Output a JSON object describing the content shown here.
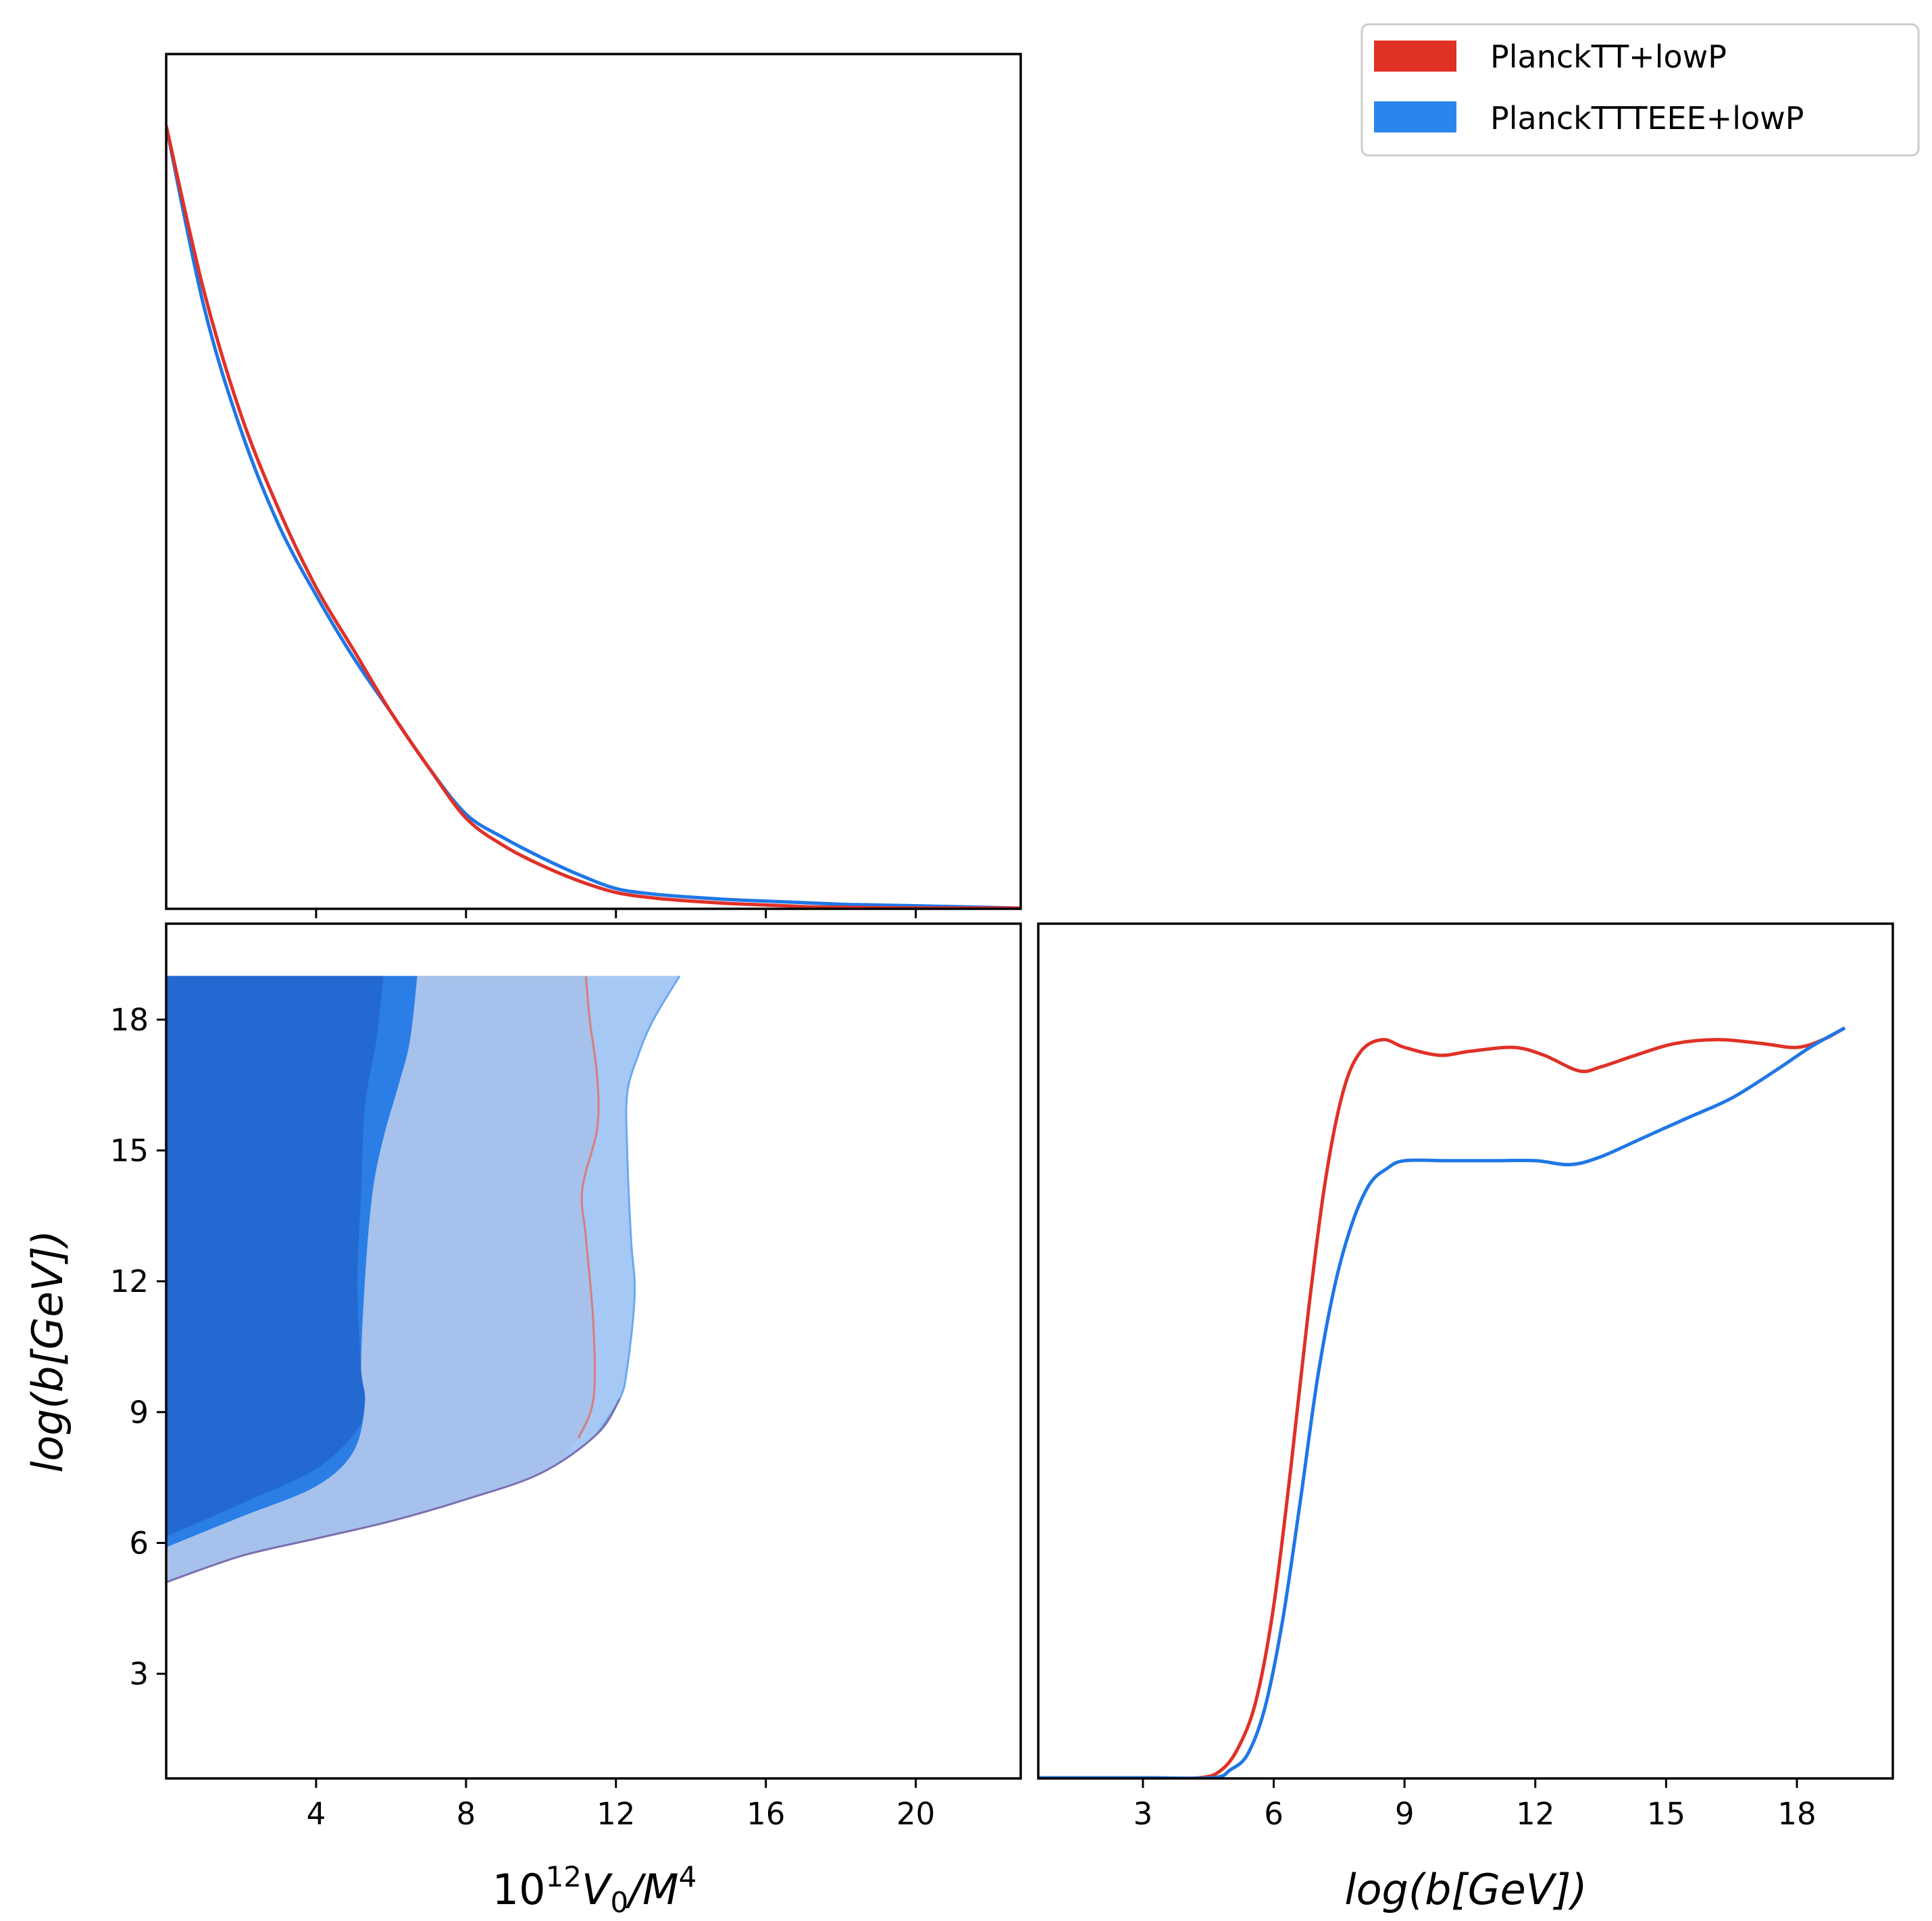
{
  "colors": {
    "red": "#e03127",
    "blue": "#1f77e6",
    "blue_dark_fill": "#2369d1",
    "blue_mid_fill": "#2a7ee6",
    "blue_light_fill": "#a6c1eb",
    "blue_lighter_fill": "#a5c8f5",
    "red_contour": "#d87c7c",
    "blue_contour": "#6da8ee",
    "contour_mix": "#7a6fb0"
  },
  "legend": {
    "entries": [
      {
        "label": "PlanckTT+lowP",
        "color": "#e03127"
      },
      {
        "label": "PlanckTTTEEE+lowP",
        "color": "#2a86ec"
      }
    ],
    "placement": "top-right"
  },
  "labels": {
    "x_left": "10",
    "x_left_sup": "12",
    "x_left_v": "V",
    "x_left_sub": "0",
    "x_left_rest": "/M",
    "x_left_sup2": "4",
    "y_left": "log(b[GeV])",
    "x_right": "log(b[GeV])"
  },
  "chart_data": [
    {
      "type": "line",
      "panel": "1D marginal of 10^12 V0/M^4",
      "xlim": [
        0,
        22.8
      ],
      "ylim": [
        0,
        1.0
      ],
      "yticks_visible": false,
      "xticks": [
        4,
        8,
        12,
        16,
        20
      ],
      "series": [
        {
          "name": "PlanckTT+lowP",
          "x": [
            0,
            1,
            2,
            3,
            4,
            5,
            6,
            7,
            8,
            9,
            10,
            11,
            12,
            13,
            14,
            15,
            16,
            17,
            18,
            19,
            20,
            22.8
          ],
          "y": [
            1.0,
            0.79,
            0.63,
            0.51,
            0.41,
            0.33,
            0.25,
            0.18,
            0.115,
            0.08,
            0.055,
            0.035,
            0.02,
            0.013,
            0.009,
            0.006,
            0.004,
            0.002,
            0.001,
            0.0005,
            0.0002,
            0.0
          ]
        },
        {
          "name": "PlanckTTTEEE+lowP",
          "x": [
            0,
            1,
            2,
            3,
            4,
            5,
            6,
            7,
            8,
            9,
            10,
            11,
            12,
            13,
            14,
            15,
            16,
            17,
            18,
            19,
            20,
            22.8
          ],
          "y": [
            1.0,
            0.77,
            0.61,
            0.49,
            0.4,
            0.32,
            0.25,
            0.18,
            0.12,
            0.09,
            0.065,
            0.043,
            0.025,
            0.018,
            0.014,
            0.011,
            0.009,
            0.007,
            0.005,
            0.004,
            0.003,
            0.0
          ]
        }
      ]
    },
    {
      "type": "contour",
      "panel": "2D posterior log(b[GeV]) vs 10^12 V0/M^4",
      "xlim": [
        0,
        22.8
      ],
      "ylim": [
        0.6,
        20.2
      ],
      "xticks": [
        4,
        8,
        12,
        16,
        20
      ],
      "yticks": [
        3,
        6,
        9,
        12,
        15,
        18
      ],
      "contours": [
        {
          "name": "PlanckTTTEEE+lowP 95%",
          "fill": "#a5c8f5",
          "edge": "#6da8ee",
          "points": [
            [
              0,
              5.1
            ],
            [
              2,
              5.7
            ],
            [
              4,
              6.1
            ],
            [
              6,
              6.5
            ],
            [
              8,
              7.0
            ],
            [
              10,
              7.6
            ],
            [
              11.5,
              8.5
            ],
            [
              12.1,
              9.3
            ],
            [
              12.3,
              10
            ],
            [
              12.5,
              11.7
            ],
            [
              12.4,
              13
            ],
            [
              12.3,
              15
            ],
            [
              12.3,
              16.3
            ],
            [
              12.6,
              17.2
            ],
            [
              13,
              18
            ],
            [
              13.7,
              19
            ],
            [
              0,
              19
            ]
          ]
        },
        {
          "name": "PlanckTT+lowP 95%",
          "fill": "#a6c1eb",
          "edge": "#d87c7c",
          "points": [
            [
              0,
              5.1
            ],
            [
              2,
              5.7
            ],
            [
              4,
              6.1
            ],
            [
              6,
              6.5
            ],
            [
              8,
              7.0
            ],
            [
              10,
              7.6
            ],
            [
              11,
              8.4
            ],
            [
              11.4,
              9.3
            ],
            [
              11.4,
              11
            ],
            [
              11.2,
              13
            ],
            [
              11.1,
              14.1
            ],
            [
              11.5,
              15.5
            ],
            [
              11.5,
              16.7
            ],
            [
              11.3,
              18
            ],
            [
              11.2,
              19
            ],
            [
              0,
              19
            ]
          ]
        },
        {
          "name": "PlanckTTTEEE+lowP 68%",
          "fill": "#2a7ee6",
          "edge": "none",
          "points": [
            [
              0,
              5.9
            ],
            [
              2,
              6.6
            ],
            [
              4,
              7.3
            ],
            [
              5,
              8.1
            ],
            [
              5.3,
              9.2
            ],
            [
              5.2,
              10
            ],
            [
              5.3,
              12
            ],
            [
              5.5,
              14
            ],
            [
              5.8,
              15.3
            ],
            [
              6.2,
              16.5
            ],
            [
              6.5,
              17.5
            ],
            [
              6.7,
              19
            ],
            [
              0,
              19
            ]
          ]
        },
        {
          "name": "PlanckTT+lowP 68%",
          "fill": "#2369d1",
          "edge": "none",
          "points": [
            [
              0,
              6.15
            ],
            [
              2,
              6.9
            ],
            [
              4,
              7.7
            ],
            [
              5.1,
              8.6
            ],
            [
              5.3,
              9.3
            ],
            [
              5.2,
              10
            ],
            [
              5.1,
              12
            ],
            [
              5.2,
              14
            ],
            [
              5.3,
              16
            ],
            [
              5.6,
              17.5
            ],
            [
              5.8,
              19
            ],
            [
              0,
              19
            ]
          ]
        }
      ]
    },
    {
      "type": "line",
      "panel": "1D marginal of log(b[GeV])",
      "xlim": [
        0.6,
        20.2
      ],
      "ylim": [
        0,
        1.0
      ],
      "yticks_visible": false,
      "xticks": [
        3,
        6,
        9,
        12,
        15,
        18
      ],
      "series": [
        {
          "name": "PlanckTT+lowP",
          "x": [
            0.6,
            3,
            4.3,
            4.8,
            5.2,
            5.6,
            6,
            6.4,
            6.8,
            7.2,
            7.6,
            8,
            8.5,
            9,
            9.8,
            10.5,
            11.5,
            12.2,
            13,
            13.5,
            14.3,
            15.2,
            16.2,
            17.2,
            18,
            18.6,
            19.1
          ],
          "y": [
            0.0,
            0.0,
            0.0,
            0.01,
            0.04,
            0.1,
            0.22,
            0.4,
            0.6,
            0.77,
            0.88,
            0.93,
            0.945,
            0.935,
            0.925,
            0.93,
            0.935,
            0.925,
            0.905,
            0.91,
            0.925,
            0.94,
            0.945,
            0.94,
            0.935,
            0.945,
            0.96
          ]
        },
        {
          "name": "PlanckTTTEEE+lowP",
          "x": [
            0.6,
            3,
            4.6,
            5.0,
            5.4,
            5.8,
            6.2,
            6.6,
            7.0,
            7.4,
            7.8,
            8.2,
            8.6,
            9.0,
            10,
            11,
            12,
            12.8,
            13.5,
            14.5,
            15.5,
            16.5,
            17.5,
            18.3,
            19.1
          ],
          "y": [
            0.0,
            0.0,
            0.0,
            0.01,
            0.03,
            0.09,
            0.2,
            0.35,
            0.51,
            0.63,
            0.71,
            0.76,
            0.78,
            0.79,
            0.79,
            0.79,
            0.79,
            0.785,
            0.795,
            0.82,
            0.845,
            0.87,
            0.905,
            0.935,
            0.96
          ]
        }
      ]
    }
  ]
}
